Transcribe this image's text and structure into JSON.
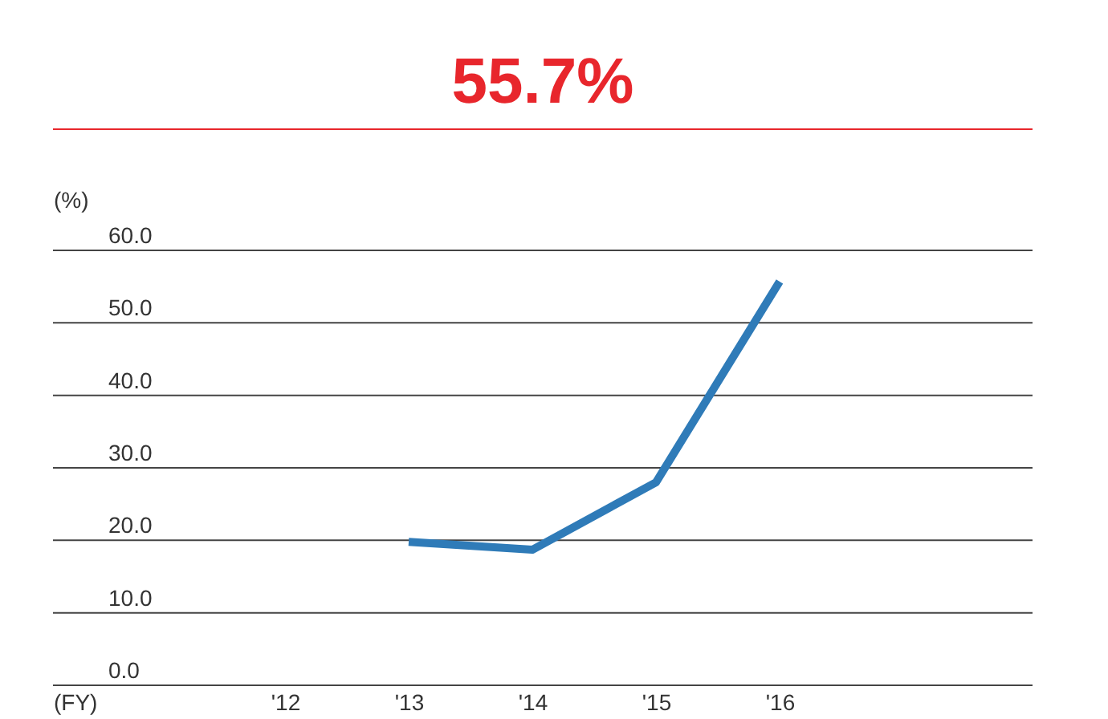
{
  "chart_data": {
    "type": "line",
    "title": "55.7%",
    "xlabel": "(FY)",
    "ylabel": "(%)",
    "categories": [
      "'12",
      "'13",
      "'14",
      "'15",
      "'16"
    ],
    "series": [
      {
        "color": "#2f7bb8",
        "values": [
          null,
          19.8,
          18.7,
          28.0,
          55.7
        ]
      }
    ],
    "ylim": [
      0,
      60
    ],
    "yticks": [
      {
        "value": 0,
        "label": "0.0"
      },
      {
        "value": 10,
        "label": "10.0"
      },
      {
        "value": 20,
        "label": "20.0"
      },
      {
        "value": 30,
        "label": "30.0"
      },
      {
        "value": 40,
        "label": "40.0"
      },
      {
        "value": 50,
        "label": "50.0"
      },
      {
        "value": 60,
        "label": "60.0"
      }
    ],
    "grid": "y",
    "legend": false,
    "marker": "none",
    "line_style": "solid"
  }
}
